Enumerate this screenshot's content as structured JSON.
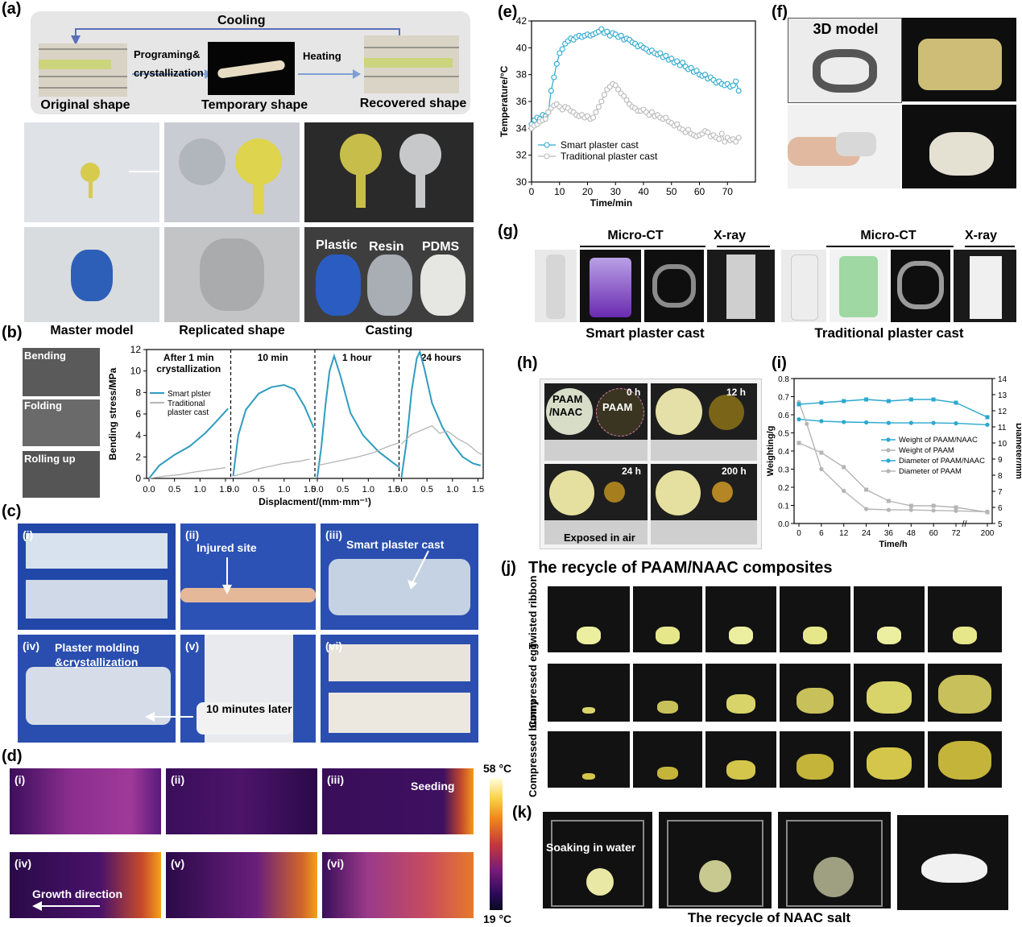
{
  "panel_labels": {
    "a": "(a)",
    "b": "(b)",
    "c": "(c)",
    "d": "(d)",
    "e": "(e)",
    "f": "(f)",
    "g": "(g)",
    "h": "(h)",
    "i": "(i)",
    "j": "(j)",
    "k": "(k)"
  },
  "panel_a": {
    "cooling": "Cooling",
    "programing": "Programing&",
    "crystallization": "crystallization",
    "heating": "Heating",
    "original_shape": "Original shape",
    "temporary_shape": "Temporary shape",
    "recovered_shape": "Recovered shape",
    "plastic": "Plastic",
    "resin": "Resin",
    "pdms": "PDMS",
    "master_model": "Master model",
    "replicated_shape": "Replicated shape",
    "casting": "Casting"
  },
  "panel_b": {
    "bending": "Bending",
    "folding": "Folding",
    "rolling_up": "Rolling up"
  },
  "panel_c": {
    "sub": [
      "(i)",
      "(ii)",
      "(iii)",
      "(iv)",
      "(v)",
      "(vi)"
    ],
    "injured_site": "Injured site",
    "smart_cast": "Smart  plaster cast",
    "molding_1": "Plaster molding",
    "molding_2": "&crystallization",
    "ten_min": "10 minutes later"
  },
  "panel_d": {
    "sub": [
      "(i)",
      "(ii)",
      "(iii)",
      "(iv)",
      "(v)",
      "(vi)"
    ],
    "seeding": "Seeding",
    "growth": "Growth direction",
    "scale_max": "58 °C",
    "scale_min": "19 °C"
  },
  "panel_f": {
    "model": "3D model"
  },
  "panel_g": {
    "microct_1": "Micro-CT",
    "xray_1": "X-ray",
    "microct_2": "Micro-CT",
    "xray_2": "X-ray",
    "smart": "Smart plaster cast",
    "traditional": "Traditional plaster cast"
  },
  "panel_h": {
    "paam_naac_1": "PAAM",
    "paam_naac_2": "/NAAC",
    "paam": "PAAM",
    "t0": "0 h",
    "t12": "12 h",
    "t24": "24 h",
    "t200": "200 h",
    "exposed": "Exposed in air"
  },
  "panel_j": {
    "title": "The recycle of  PAAM/NAAC composites",
    "row1": "Twisted ribbon",
    "row2": "Compressed egg",
    "row3": "Compressed bunny"
  },
  "panel_k": {
    "soaking": "Soaking in water",
    "caption": "The recycle of NAAC salt"
  },
  "chart_data": [
    {
      "id": "b",
      "type": "line",
      "ylabel": "Bending stress/MPa",
      "xlabel": "Displacment/(mm·mm⁻¹)",
      "ylim": [
        0,
        12
      ],
      "yticks": [
        "0",
        "2",
        "4",
        "6",
        "8",
        "10",
        "12"
      ],
      "xticks": [
        "0.0",
        "0.5",
        "1.0",
        "1.5",
        "0.0",
        "0.5",
        "1.0",
        "1.5",
        "0.0",
        "0.5",
        "1.0",
        "1.5",
        "0.0",
        "0.5",
        "1.0",
        "1.5"
      ],
      "segments": [
        "After 1 min",
        "10 min",
        "1 hour",
        "24 hours"
      ],
      "segment_sub": "crystallization",
      "legend": [
        "Smart plster",
        "Traditional",
        "plaster cast"
      ],
      "colors": {
        "smart": "#2f9cbf",
        "traditional": "#b5b5b5"
      },
      "series": [
        {
          "name": "Smart plster",
          "segments": [
            [
              [
                0,
                0
              ],
              [
                0.2,
                1.2
              ],
              [
                0.5,
                2.2
              ],
              [
                0.8,
                3.0
              ],
              [
                1.1,
                4.2
              ],
              [
                1.3,
                5.2
              ],
              [
                1.55,
                6.5
              ]
            ],
            [
              [
                0,
                0.2
              ],
              [
                0.1,
                4.0
              ],
              [
                0.25,
                6.4
              ],
              [
                0.5,
                7.9
              ],
              [
                0.75,
                8.5
              ],
              [
                1.0,
                8.7
              ],
              [
                1.2,
                8.3
              ],
              [
                1.4,
                6.7
              ],
              [
                1.58,
                4.7
              ]
            ],
            [
              [
                0,
                0.1
              ],
              [
                0.08,
                3.0
              ],
              [
                0.16,
                6.8
              ],
              [
                0.24,
                10.0
              ],
              [
                0.33,
                11.4
              ],
              [
                0.45,
                9.6
              ],
              [
                0.65,
                6.1
              ],
              [
                0.9,
                4.0
              ],
              [
                1.2,
                2.5
              ],
              [
                1.5,
                1.4
              ],
              [
                1.62,
                1.0
              ]
            ],
            [
              [
                0,
                0.1
              ],
              [
                0.1,
                3.4
              ],
              [
                0.2,
                8.2
              ],
              [
                0.3,
                11.2
              ],
              [
                0.36,
                11.8
              ],
              [
                0.45,
                10.2
              ],
              [
                0.6,
                7.0
              ],
              [
                0.8,
                4.8
              ],
              [
                1.0,
                3.2
              ],
              [
                1.2,
                2.0
              ],
              [
                1.4,
                1.4
              ],
              [
                1.55,
                1.2
              ]
            ]
          ]
        },
        {
          "name": "Traditional plaster cast",
          "segments": [
            [
              [
                0,
                0
              ],
              [
                0.3,
                0.2
              ],
              [
                0.6,
                0.35
              ],
              [
                0.9,
                0.6
              ],
              [
                1.2,
                0.8
              ],
              [
                1.5,
                1.0
              ]
            ],
            [
              [
                0,
                0.2
              ],
              [
                0.3,
                0.6
              ],
              [
                0.5,
                0.9
              ],
              [
                0.8,
                1.2
              ],
              [
                1.0,
                1.4
              ],
              [
                1.3,
                1.6
              ],
              [
                1.5,
                1.8
              ]
            ],
            [
              [
                0,
                1.2
              ],
              [
                0.3,
                1.5
              ],
              [
                0.5,
                1.7
              ],
              [
                0.8,
                2.0
              ],
              [
                1.1,
                2.4
              ],
              [
                1.4,
                3.0
              ],
              [
                1.6,
                3.3
              ]
            ],
            [
              [
                0,
                3.2
              ],
              [
                0.2,
                4.1
              ],
              [
                0.4,
                4.5
              ],
              [
                0.6,
                4.9
              ],
              [
                0.75,
                4.2
              ],
              [
                0.9,
                4.4
              ],
              [
                1.1,
                3.7
              ],
              [
                1.3,
                3.2
              ],
              [
                1.5,
                2.4
              ],
              [
                1.6,
                2.2
              ]
            ]
          ]
        }
      ]
    },
    {
      "id": "e",
      "type": "line",
      "xlabel": "Time/min",
      "ylabel": "Temperature/°C",
      "xlim": [
        0,
        80
      ],
      "ylim": [
        30,
        42
      ],
      "xticks": [
        "0",
        "10",
        "20",
        "30",
        "40",
        "50",
        "60",
        "70"
      ],
      "yticks": [
        "30",
        "32",
        "34",
        "36",
        "38",
        "40",
        "42"
      ],
      "legend": [
        "Smart plaster cast",
        "Traditional plaster cast"
      ],
      "colors": {
        "smart": "#2ba8cf",
        "traditional": "#b9b9b9"
      },
      "series": [
        {
          "name": "Smart plaster cast",
          "x": [
            0,
            1,
            2,
            3,
            4,
            5,
            6,
            7,
            8,
            9,
            10,
            11,
            12,
            13,
            14,
            15,
            16,
            17,
            18,
            19,
            20,
            21,
            22,
            23,
            24,
            25,
            26,
            27,
            28,
            29,
            30,
            31,
            32,
            33,
            34,
            35,
            36,
            37,
            38,
            39,
            40,
            41,
            42,
            43,
            44,
            45,
            46,
            47,
            48,
            49,
            50,
            51,
            52,
            53,
            54,
            55,
            56,
            57,
            58,
            59,
            60,
            61,
            62,
            63,
            64,
            65,
            66,
            67,
            68,
            69,
            70,
            71,
            72,
            73,
            74
          ],
          "y": [
            34.3,
            34.6,
            34.8,
            34.7,
            35.0,
            34.9,
            35.2,
            36.8,
            37.8,
            38.8,
            39.6,
            39.9,
            40.3,
            40.5,
            40.7,
            40.6,
            40.8,
            40.9,
            40.8,
            40.9,
            41.0,
            40.9,
            41.0,
            41.1,
            41.2,
            41.4,
            41.1,
            41.2,
            40.9,
            41.1,
            41.0,
            40.8,
            40.9,
            40.6,
            40.7,
            40.6,
            40.4,
            40.3,
            40.1,
            40.2,
            40.0,
            39.9,
            39.7,
            39.8,
            39.6,
            39.5,
            39.6,
            39.3,
            39.4,
            39.1,
            39.2,
            38.9,
            39.0,
            38.7,
            38.9,
            38.6,
            38.4,
            38.5,
            38.2,
            38.3,
            38.0,
            37.9,
            38.0,
            37.7,
            37.8,
            37.6,
            37.4,
            37.5,
            37.3,
            37.2,
            37.3,
            37.1,
            37.2,
            37.5,
            36.8
          ]
        },
        {
          "name": "Traditional plaster cast",
          "x": [
            0,
            1,
            2,
            3,
            4,
            5,
            6,
            7,
            8,
            9,
            10,
            11,
            12,
            13,
            14,
            15,
            16,
            17,
            18,
            19,
            20,
            21,
            22,
            23,
            24,
            25,
            26,
            27,
            28,
            29,
            30,
            31,
            32,
            33,
            34,
            35,
            36,
            37,
            38,
            39,
            40,
            41,
            42,
            43,
            44,
            45,
            46,
            47,
            48,
            49,
            50,
            51,
            52,
            53,
            54,
            55,
            56,
            57,
            58,
            59,
            60,
            61,
            62,
            63,
            64,
            65,
            66,
            67,
            68,
            69,
            70,
            71,
            72,
            73,
            74
          ],
          "y": [
            34.0,
            34.2,
            34.3,
            34.5,
            34.6,
            34.7,
            35.2,
            35.5,
            35.7,
            35.8,
            35.6,
            35.4,
            35.6,
            35.5,
            35.3,
            35.2,
            35.0,
            34.9,
            35.0,
            34.8,
            34.9,
            34.7,
            34.8,
            35.2,
            35.6,
            36.0,
            36.5,
            36.9,
            37.1,
            37.3,
            37.2,
            36.9,
            36.6,
            36.4,
            36.1,
            35.8,
            35.6,
            35.5,
            35.3,
            35.3,
            35.4,
            35.2,
            35.0,
            35.2,
            34.9,
            35.0,
            34.8,
            34.7,
            34.8,
            34.5,
            34.4,
            34.2,
            34.3,
            34.0,
            33.9,
            33.7,
            33.9,
            33.6,
            33.5,
            33.4,
            33.5,
            33.6,
            33.8,
            33.7,
            33.4,
            33.5,
            33.3,
            33.2,
            33.6,
            33.0,
            33.3,
            33.1,
            33.2,
            33.0,
            33.3
          ]
        }
      ]
    },
    {
      "id": "i",
      "type": "line",
      "xlabel": "Time/h",
      "ylabel": "Weighting/g",
      "ylabel_right": "Diameter/mm",
      "ylim": [
        0,
        0.8
      ],
      "ylim_right": [
        5,
        14
      ],
      "xticks": [
        "0",
        "6",
        "12",
        "24",
        "36",
        "48",
        "60",
        "72",
        "200"
      ],
      "yticks": [
        "0.0",
        "0.1",
        "0.2",
        "0.3",
        "0.4",
        "0.5",
        "0.6",
        "0.7",
        "0.8"
      ],
      "yticks_right": [
        "5",
        "6",
        "7",
        "8",
        "9",
        "10",
        "11",
        "12",
        "13",
        "14"
      ],
      "legend": [
        "Weight of PAAM/NAAC",
        "Weight of PAAM",
        "Diameter of PAAM/NAAC",
        "Diameter of PAAM"
      ],
      "colors": {
        "paam_naac": "#2ba8cf",
        "paam": "#b5b5b5"
      },
      "series": [
        {
          "name": "Weight of PAAM/NAAC",
          "axis": "left",
          "x": [
            0,
            6,
            12,
            24,
            36,
            48,
            60,
            72,
            200
          ],
          "y": [
            0.575,
            0.565,
            0.56,
            0.558,
            0.555,
            0.555,
            0.555,
            0.553,
            0.545
          ]
        },
        {
          "name": "Weight of PAAM",
          "axis": "left",
          "x": [
            0,
            2,
            6,
            12,
            24,
            36,
            48,
            60,
            72,
            200
          ],
          "y": [
            0.67,
            0.55,
            0.3,
            0.18,
            0.08,
            0.075,
            0.075,
            0.072,
            0.07,
            0.065
          ]
        },
        {
          "name": "Diameter of PAAM/NAAC",
          "axis": "right",
          "x": [
            0,
            6,
            12,
            24,
            36,
            48,
            60,
            72,
            200
          ],
          "y": [
            12.4,
            12.5,
            12.6,
            12.7,
            12.6,
            12.7,
            12.7,
            12.5,
            11.6
          ]
        },
        {
          "name": "Diameter of PAAM",
          "axis": "right",
          "x": [
            0,
            6,
            12,
            24,
            36,
            48,
            60,
            72,
            200
          ],
          "y": [
            10.0,
            9.4,
            8.5,
            7.1,
            6.4,
            6.1,
            6.1,
            6.0,
            5.7
          ]
        }
      ]
    }
  ]
}
